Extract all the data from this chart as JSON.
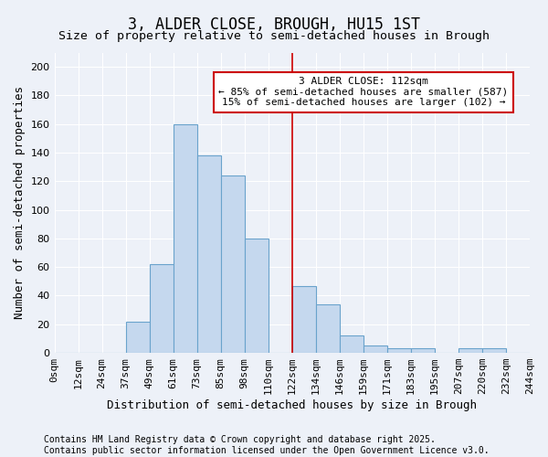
{
  "title": "3, ALDER CLOSE, BROUGH, HU15 1ST",
  "subtitle": "Size of property relative to semi-detached houses in Brough",
  "xlabel": "Distribution of semi-detached houses by size in Brough",
  "ylabel": "Number of semi-detached properties",
  "bin_labels": [
    "0sqm",
    "12sqm",
    "24sqm",
    "37sqm",
    "49sqm",
    "61sqm",
    "73sqm",
    "85sqm",
    "98sqm",
    "110sqm",
    "122sqm",
    "134sqm",
    "146sqm",
    "159sqm",
    "171sqm",
    "183sqm",
    "195sqm",
    "207sqm",
    "220sqm",
    "232sqm",
    "244sqm"
  ],
  "bar_values": [
    0,
    0,
    0,
    22,
    62,
    160,
    138,
    124,
    80,
    0,
    47,
    34,
    12,
    5,
    3,
    3,
    0,
    3,
    3,
    0
  ],
  "bar_color": "#c5d8ee",
  "bar_edge_color": "#6aa3cc",
  "vline_x_index": 10,
  "vline_color": "#cc0000",
  "ylim": [
    0,
    210
  ],
  "yticks": [
    0,
    20,
    40,
    60,
    80,
    100,
    120,
    140,
    160,
    180,
    200
  ],
  "annotation_title": "3 ALDER CLOSE: 112sqm",
  "annotation_line1": "← 85% of semi-detached houses are smaller (587)",
  "annotation_line2": "15% of semi-detached houses are larger (102) →",
  "annotation_box_color": "#ffffff",
  "annotation_box_edge": "#cc0000",
  "bg_color": "#edf1f8",
  "grid_color": "#ffffff",
  "title_fontsize": 12,
  "subtitle_fontsize": 9.5,
  "axis_label_fontsize": 9,
  "tick_fontsize": 8,
  "annotation_fontsize": 8,
  "footnote_fontsize": 7
}
